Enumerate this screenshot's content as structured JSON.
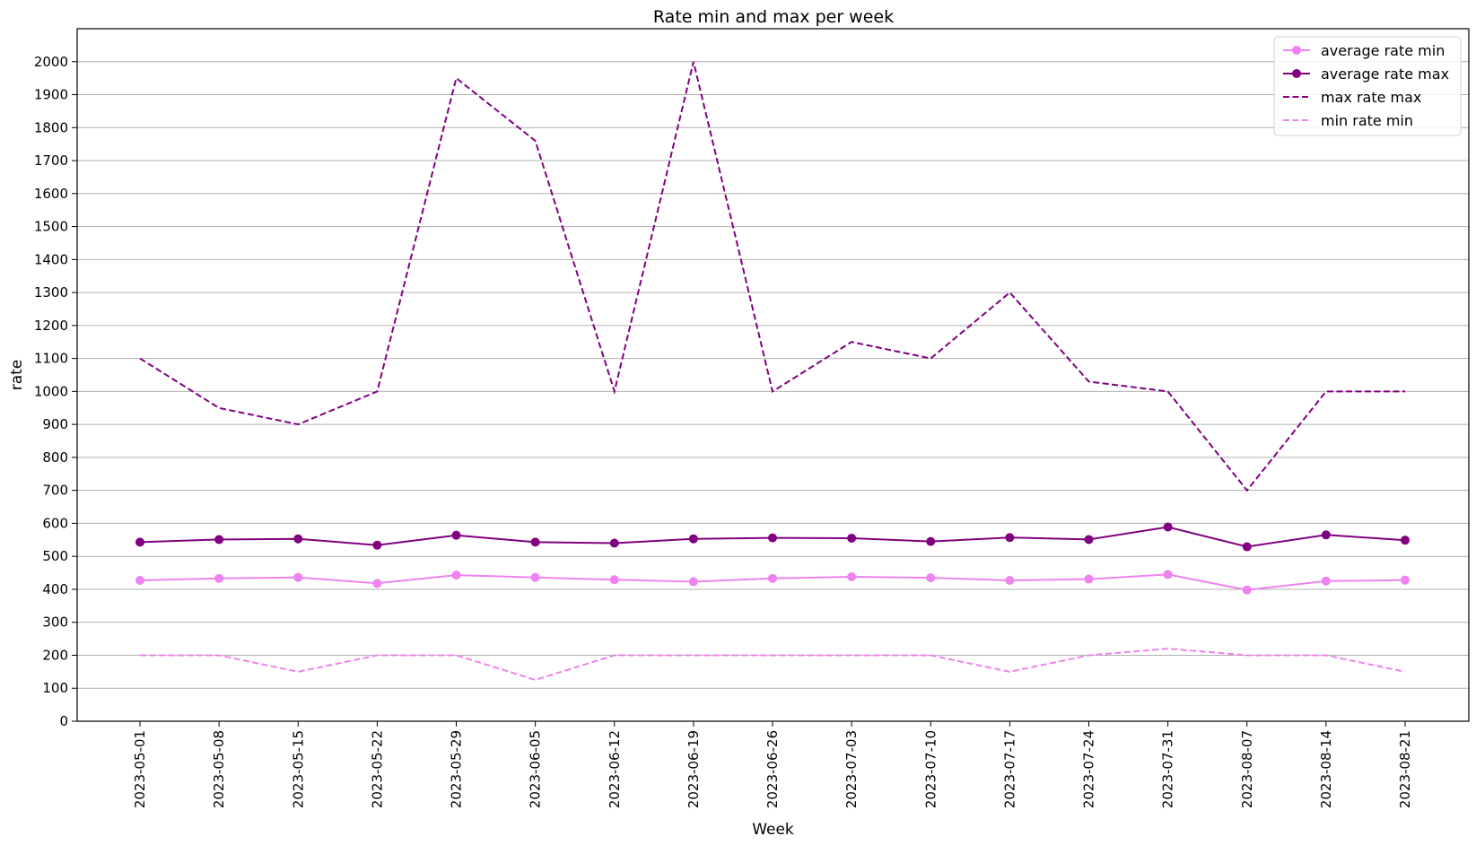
{
  "chart_data": {
    "type": "line",
    "title": "Rate min and max per week",
    "xlabel": "Week",
    "ylabel": "rate",
    "categories": [
      "2023-05-01",
      "2023-05-08",
      "2023-05-15",
      "2023-05-22",
      "2023-05-29",
      "2023-06-05",
      "2023-06-12",
      "2023-06-19",
      "2023-06-26",
      "2023-07-03",
      "2023-07-10",
      "2023-07-17",
      "2023-07-24",
      "2023-07-31",
      "2023-08-07",
      "2023-08-14",
      "2023-08-21"
    ],
    "ylim": [
      0,
      2100
    ],
    "yticks": [
      0,
      100,
      200,
      300,
      400,
      500,
      600,
      700,
      800,
      900,
      1000,
      1100,
      1200,
      1300,
      1400,
      1500,
      1600,
      1700,
      1800,
      1900,
      2000
    ],
    "grid": "horizontal",
    "legend_position": "top-right",
    "series": [
      {
        "name": "average rate min",
        "color": "#ee82ee",
        "style": "solid",
        "marker": "circle",
        "values": [
          427,
          433,
          436,
          418,
          443,
          436,
          429,
          423,
          433,
          438,
          435,
          427,
          431,
          445,
          398,
          425,
          428
        ]
      },
      {
        "name": "average rate max",
        "color": "#800080",
        "style": "solid",
        "marker": "circle",
        "values": [
          543,
          551,
          553,
          534,
          564,
          543,
          540,
          553,
          556,
          555,
          545,
          557,
          551,
          589,
          529,
          565,
          549
        ]
      },
      {
        "name": "max rate max",
        "color": "#800080",
        "style": "dashed",
        "marker": "none",
        "values": [
          1100,
          950,
          900,
          1000,
          1950,
          1760,
          1000,
          2000,
          1000,
          1150,
          1100,
          1300,
          1030,
          1000,
          700,
          1000,
          1000
        ]
      },
      {
        "name": "min rate min",
        "color": "#ee82ee",
        "style": "dashed",
        "marker": "none",
        "values": [
          200,
          200,
          150,
          200,
          200,
          125,
          200,
          200,
          200,
          200,
          200,
          150,
          200,
          220,
          200,
          200,
          150
        ]
      }
    ]
  }
}
